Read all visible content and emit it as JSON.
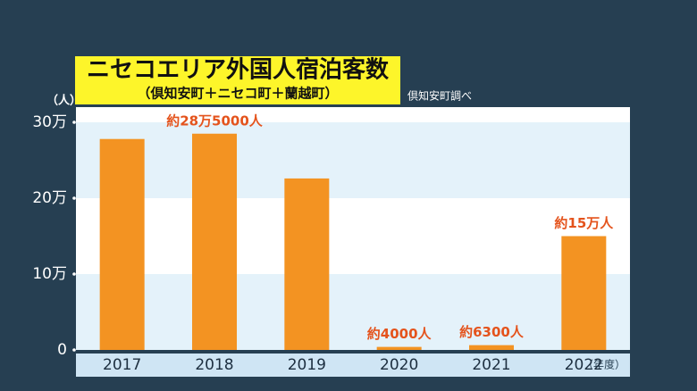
{
  "chart_data": {
    "type": "bar",
    "title": "ニセコエリア外国人宿泊客数",
    "subtitle": "（倶知安町＋ニセコ町＋蘭越町）",
    "source": "倶知安町調べ",
    "y_unit": "（人）",
    "x_unit": "（年度）",
    "categories": [
      "2017",
      "2018",
      "2019",
      "2020",
      "2021",
      "2022"
    ],
    "values": [
      278000,
      285000,
      226000,
      4000,
      6300,
      150000
    ],
    "value_labels": [
      null,
      "約28万5000人",
      null,
      "約4000人",
      "約6300人",
      "約15万人"
    ],
    "color": "#f39322",
    "ylim": [
      0,
      320000
    ],
    "yticks": [
      0,
      {
        "value": 100000,
        "label": "10万"
      },
      {
        "value": 200000,
        "label": "20万"
      },
      {
        "value": 300000,
        "label": "30万"
      }
    ],
    "grid": true
  }
}
